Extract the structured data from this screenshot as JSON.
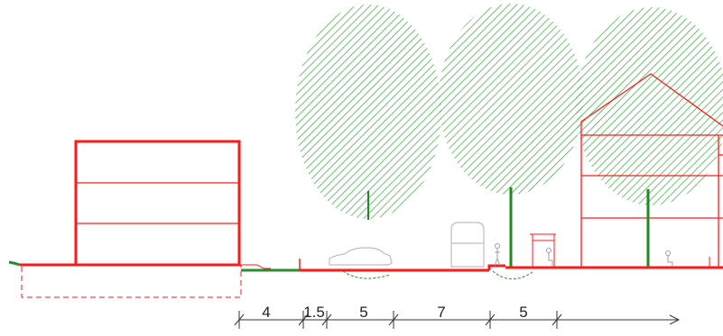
{
  "colors": {
    "building": "#ff1a1a",
    "ground_green": "#2e8b2e",
    "tree_hatch": "#4caf50",
    "trunk": "#1f8a1f",
    "vehicle": "#bdbdbd",
    "dimension": "#333333",
    "background": "#ffffff"
  },
  "dimensions": {
    "labels": [
      "4",
      "1.5",
      "5",
      "7",
      "5"
    ],
    "arrow": "right-arrow"
  },
  "elements": {
    "trees": 3,
    "buildings": [
      "left-building",
      "right-house"
    ],
    "vehicles": [
      "car",
      "bus"
    ],
    "figures": [
      "pedestrian",
      "seated-person-left",
      "seated-person-right"
    ]
  }
}
